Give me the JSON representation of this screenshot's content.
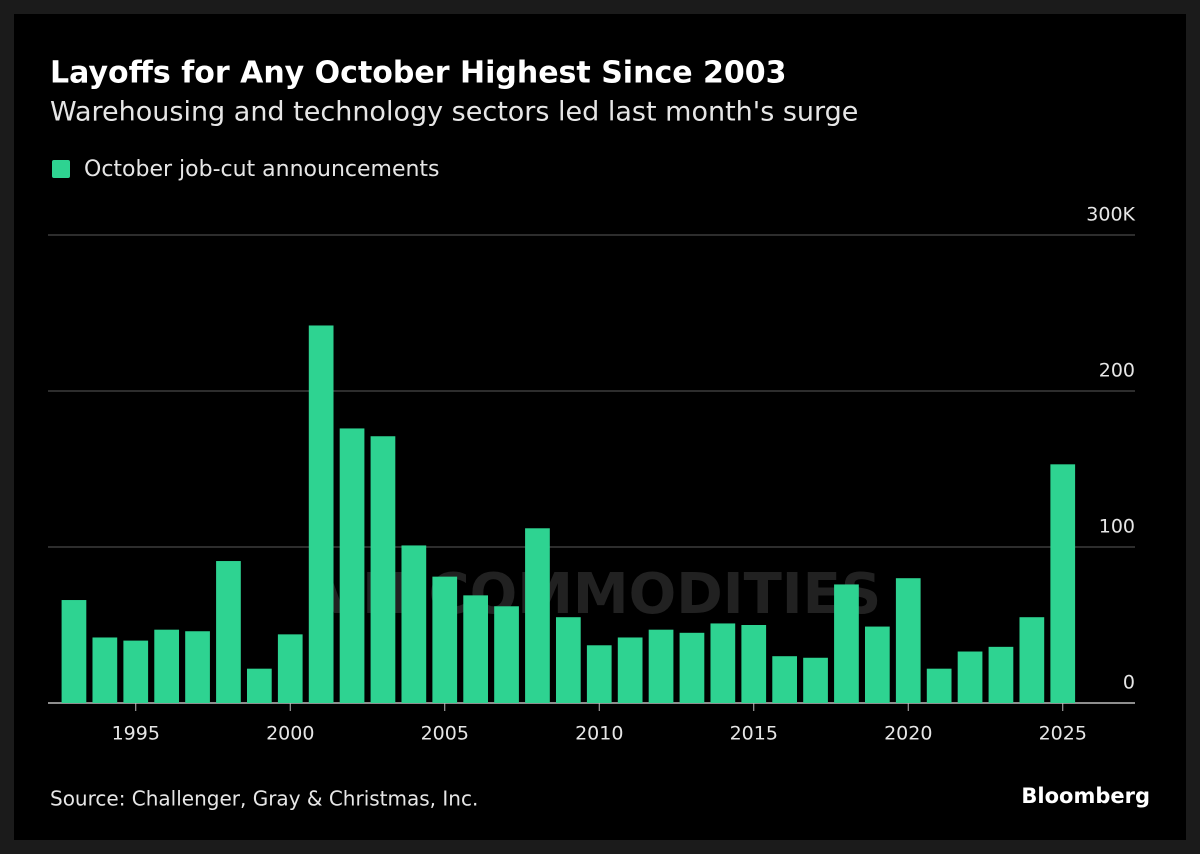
{
  "chart_data": {
    "type": "bar",
    "title": "Layoffs for Any October Highest Since 2003",
    "subtitle": "Warehousing and technology sectors led last month's surge",
    "source": "Source: Challenger, Gray & Christmas, Inc.",
    "brand": "Bloomberg",
    "watermark": "VN COMMODITIES",
    "categories": [
      null,
      null,
      "1995",
      null,
      null,
      null,
      null,
      "2000",
      null,
      null,
      null,
      null,
      "2005",
      null,
      null,
      null,
      null,
      "2010",
      null,
      null,
      null,
      null,
      "2015",
      null,
      null,
      null,
      null,
      "2020",
      null,
      null,
      null,
      null,
      "2025"
    ],
    "series": [
      {
        "name": "October job-cut announcements",
        "color": "#2ed391",
        "values": [
          66,
          42,
          40,
          47,
          46,
          91,
          22,
          44,
          242,
          176,
          171,
          101,
          81,
          69,
          62,
          112,
          55,
          37,
          42,
          47,
          45,
          51,
          50,
          30,
          29,
          76,
          49,
          80,
          22,
          33,
          36,
          55,
          153
        ]
      }
    ],
    "ylim": [
      0,
      300
    ],
    "yticks": [
      0,
      100,
      200,
      {
        "value": 300,
        "label": "300K"
      }
    ],
    "grid": true,
    "legend": "top-left"
  }
}
